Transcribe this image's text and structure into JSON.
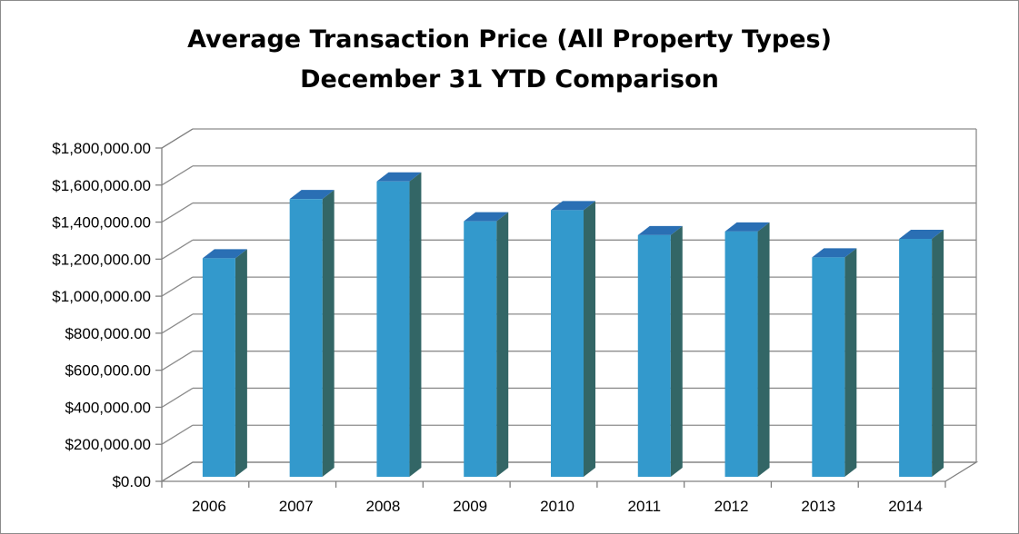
{
  "chart_data": {
    "type": "bar",
    "title_lines": [
      "Average Transaction Price (All Property Types)",
      "December 31 YTD Comparison"
    ],
    "categories": [
      "2006",
      "2007",
      "2008",
      "2009",
      "2010",
      "2011",
      "2012",
      "2013",
      "2014"
    ],
    "values": [
      1180000,
      1500000,
      1595000,
      1380000,
      1440000,
      1305000,
      1325000,
      1185000,
      1285000
    ],
    "y_tick_labels": [
      "$0.00",
      "$200,000.00",
      "$400,000.00",
      "$600,000.00",
      "$800,000.00",
      "$1,000,000.00",
      "$1,200,000.00",
      "$1,400,000.00",
      "$1,600,000.00",
      "$1,800,000.00"
    ],
    "ylim": [
      0,
      1800000
    ],
    "grid": true,
    "legend": "none",
    "style": "3d-column",
    "colors": {
      "bar_front": "#3399cc",
      "bar_side": "#336666",
      "bar_top": "#2a6fb4",
      "grid": "#8c8c8c",
      "floor": "#808080"
    }
  }
}
